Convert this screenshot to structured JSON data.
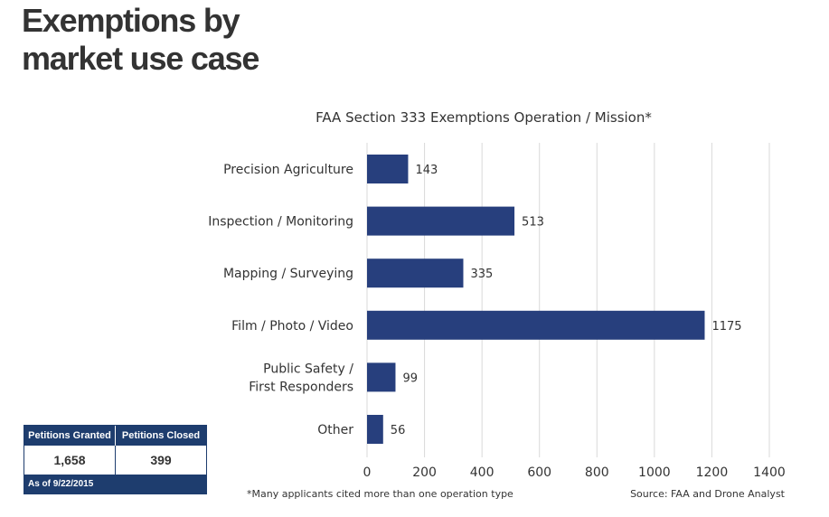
{
  "headline": "Exemptions by market use case",
  "chart_data": {
    "type": "bar",
    "orientation": "horizontal",
    "title": "FAA Section 333 Exemptions Operation / Mission*",
    "categories": [
      "Precision Agriculture",
      "Inspection / Monitoring",
      "Mapping / Surveying",
      "Film / Photo / Video",
      "Public Safety / First Responders",
      "Other"
    ],
    "values": [
      143,
      513,
      335,
      1175,
      99,
      56
    ],
    "xlim": [
      0,
      1400
    ],
    "xticks": [
      0,
      200,
      400,
      600,
      800,
      1000,
      1200,
      1400
    ],
    "grid": true,
    "bar_color": "#273f7d"
  },
  "stats": {
    "granted_label": "Petitions Granted",
    "closed_label": "Petitions Closed",
    "granted_value": "1,658",
    "closed_value": "399",
    "as_of": "As of 9/22/2015"
  },
  "footnote": "*Many applicants cited more than one operation type",
  "source": "Source: FAA and Drone Analyst"
}
